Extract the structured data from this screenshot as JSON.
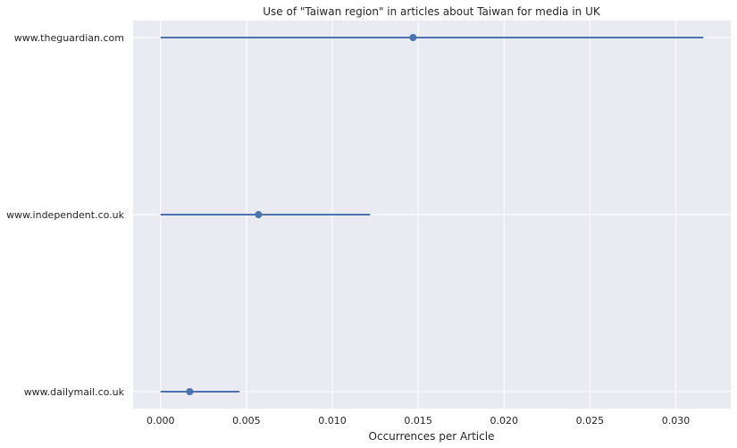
{
  "chart_data": {
    "type": "scatter",
    "title": "Use of \"Taiwan region\" in articles about Taiwan for media in UK",
    "xlabel": "Occurrences per Article",
    "ylabel": "",
    "xlim": [
      -0.0016,
      0.0332
    ],
    "x_ticks": [
      "0.000",
      "0.005",
      "0.010",
      "0.015",
      "0.020",
      "0.025",
      "0.030"
    ],
    "x_tick_values": [
      0,
      0.005,
      0.01,
      0.015,
      0.02,
      0.025,
      0.03
    ],
    "grid": true,
    "categories": [
      "www.theguardian.com",
      "www.independent.co.uk",
      "www.dailymail.co.uk"
    ],
    "series": [
      {
        "points": [
          {
            "category": "www.theguardian.com",
            "value": 0.0147,
            "ci_low": 0.0,
            "ci_high": 0.0316
          },
          {
            "category": "www.independent.co.uk",
            "value": 0.0057,
            "ci_low": 0.0,
            "ci_high": 0.0122
          },
          {
            "category": "www.dailymail.co.uk",
            "value": 0.0017,
            "ci_low": 0.0,
            "ci_high": 0.0046
          }
        ]
      }
    ],
    "colors": {
      "background": "#EAEAF2",
      "grid": "#FFFFFF",
      "marker": "#4C72B0"
    }
  }
}
